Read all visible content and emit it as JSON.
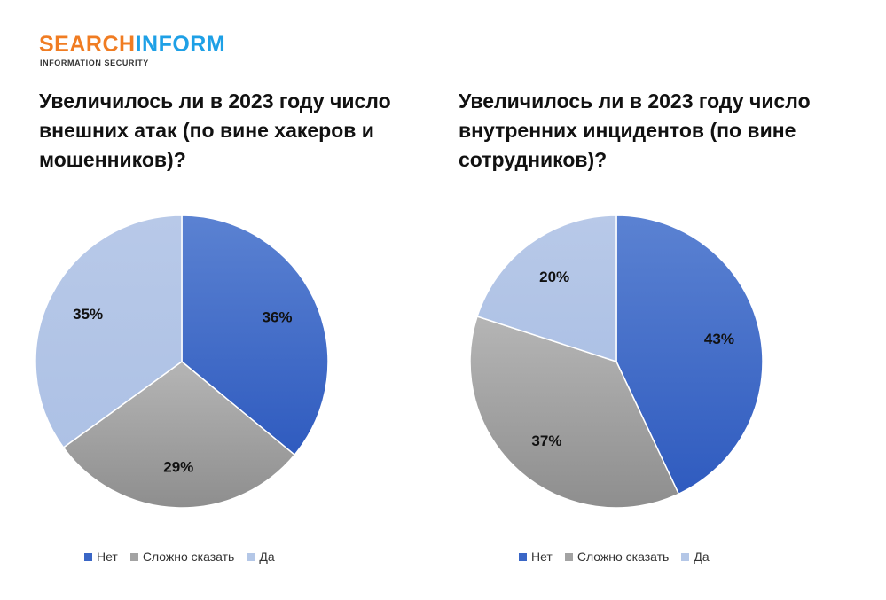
{
  "logo": {
    "part1": "SEARCH",
    "part2": "INFORM",
    "tagline": "INFORMATION SECURITY"
  },
  "colors": {
    "Нет": "#3a66c6",
    "Сложно сказать": "#a3a3a3",
    "Да": "#b4c7e7"
  },
  "chart_data": [
    {
      "type": "pie",
      "title": "Увеличилось ли в 2023 году число внешних атак (по вине хакеров и мошенников)?",
      "categories": [
        "Нет",
        "Сложно сказать",
        "Да"
      ],
      "values": [
        36,
        29,
        35
      ],
      "labels": [
        "36%",
        "29%",
        "35%"
      ],
      "legend": "bottom"
    },
    {
      "type": "pie",
      "title": "Увеличилось ли в 2023 году число внутренних инцидентов (по вине сотрудников)?",
      "categories": [
        "Нет",
        "Сложно сказать",
        "Да"
      ],
      "values": [
        43,
        37,
        20
      ],
      "labels": [
        "43%",
        "37%",
        "20%"
      ],
      "legend": "bottom"
    }
  ]
}
